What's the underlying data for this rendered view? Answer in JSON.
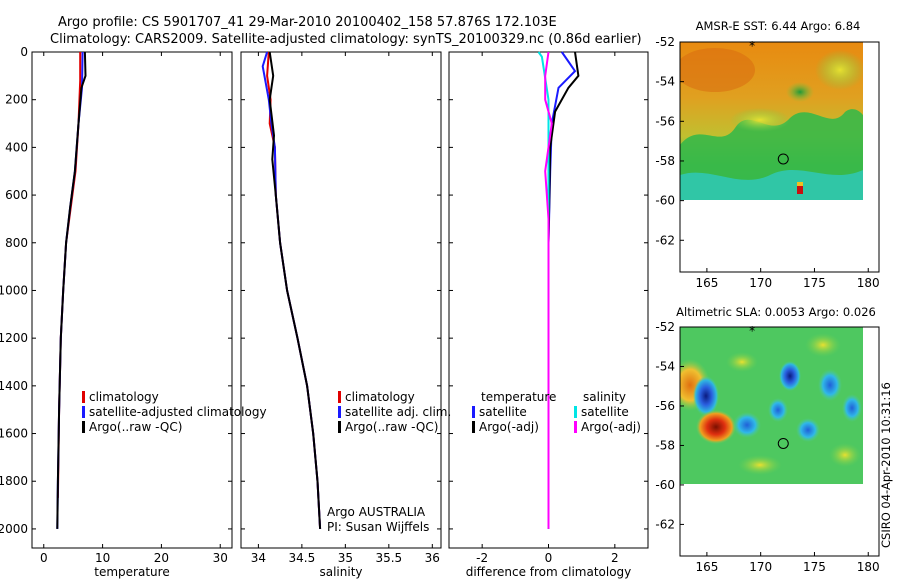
{
  "header": {
    "line1": "Argo profile: CS 5901707_41 29-Mar-2010 20100402_158 57.876S 172.103E",
    "line2": "Climatology: CARS2009. Satellite-adjusted climatology: synTS_20100329.nc (0.86d earlier)"
  },
  "side_label": "CSIRO 04-Apr-2010 10:31:16",
  "colors": {
    "red": "#e00000",
    "blue": "#1a1aff",
    "black": "#000000",
    "cyan": "#00e5e5",
    "magenta": "#ff00ff"
  },
  "chart_data": [
    {
      "id": "temperature",
      "type": "line",
      "xlabel": "temperature",
      "xlim": [
        -2,
        32
      ],
      "ylim": [
        0,
        2080
      ],
      "xticks": [
        0,
        10,
        20,
        30
      ],
      "yticks": [
        0,
        200,
        400,
        600,
        800,
        1000,
        1200,
        1400,
        1600,
        1800,
        2000
      ],
      "legend": [
        "climatology",
        "satellite-adjusted climatology",
        "Argo(..raw -QC)"
      ],
      "series": [
        {
          "name": "climatology",
          "color": "red",
          "points": [
            [
              6.2,
              0
            ],
            [
              6.2,
              120
            ],
            [
              5.9,
              300
            ],
            [
              5.4,
              500
            ],
            [
              4.6,
              650
            ],
            [
              3.8,
              800
            ],
            [
              3.3,
              1000
            ],
            [
              2.9,
              1200
            ],
            [
              2.6,
              1500
            ],
            [
              2.4,
              1870
            ]
          ]
        },
        {
          "name": "satellite-adjusted climatology",
          "color": "blue",
          "points": [
            [
              6.6,
              0
            ],
            [
              6.5,
              150
            ],
            [
              5.9,
              300
            ],
            [
              5.3,
              500
            ],
            [
              4.5,
              650
            ],
            [
              3.8,
              800
            ],
            [
              3.3,
              1000
            ],
            [
              2.9,
              1200
            ],
            [
              2.6,
              1500
            ],
            [
              2.4,
              1800
            ],
            [
              2.3,
              2000
            ]
          ]
        },
        {
          "name": "Argo(..raw -QC)",
          "color": "black",
          "points": [
            [
              7.0,
              0
            ],
            [
              7.1,
              100
            ],
            [
              6.4,
              150
            ],
            [
              5.9,
              300
            ],
            [
              5.3,
              500
            ],
            [
              4.5,
              650
            ],
            [
              3.8,
              800
            ],
            [
              3.3,
              1000
            ],
            [
              2.9,
              1200
            ],
            [
              2.6,
              1500
            ],
            [
              2.4,
              1800
            ],
            [
              2.3,
              2000
            ]
          ]
        }
      ]
    },
    {
      "id": "salinity",
      "type": "line",
      "xlabel": "salinity",
      "xlim": [
        33.8,
        36.1
      ],
      "ylim": [
        0,
        2080
      ],
      "xticks": [
        34,
        34.5,
        35,
        35.5,
        36
      ],
      "legend": [
        "climatology",
        "satellite adj. clim.",
        "Argo(..raw -QC)"
      ],
      "annotation": [
        "Argo AUSTRALIA",
        "PI: Susan Wijffels"
      ],
      "series": [
        {
          "name": "climatology",
          "color": "red",
          "points": [
            [
              34.12,
              0
            ],
            [
              34.1,
              100
            ],
            [
              34.14,
              200
            ],
            [
              34.13,
              300
            ],
            [
              34.19,
              400
            ],
            [
              34.2,
              600
            ],
            [
              34.25,
              800
            ],
            [
              34.33,
              1000
            ],
            [
              34.45,
              1200
            ],
            [
              34.56,
              1400
            ],
            [
              34.63,
              1600
            ],
            [
              34.68,
              1800
            ],
            [
              34.71,
              2000
            ]
          ]
        },
        {
          "name": "satellite adj. clim.",
          "color": "blue",
          "points": [
            [
              34.1,
              0
            ],
            [
              34.05,
              60
            ],
            [
              34.12,
              200
            ],
            [
              34.15,
              300
            ],
            [
              34.19,
              400
            ],
            [
              34.2,
              600
            ],
            [
              34.25,
              800
            ],
            [
              34.33,
              1000
            ],
            [
              34.45,
              1200
            ],
            [
              34.56,
              1400
            ],
            [
              34.63,
              1600
            ],
            [
              34.68,
              1800
            ],
            [
              34.71,
              2000
            ]
          ]
        },
        {
          "name": "Argo(..raw -QC)",
          "color": "black",
          "points": [
            [
              34.13,
              0
            ],
            [
              34.17,
              100
            ],
            [
              34.13,
              200
            ],
            [
              34.18,
              350
            ],
            [
              34.16,
              450
            ],
            [
              34.2,
              600
            ],
            [
              34.25,
              800
            ],
            [
              34.33,
              1000
            ],
            [
              34.45,
              1200
            ],
            [
              34.56,
              1400
            ],
            [
              34.63,
              1600
            ],
            [
              34.68,
              1800
            ],
            [
              34.71,
              2000
            ]
          ]
        }
      ]
    },
    {
      "id": "difference",
      "type": "line",
      "xlabel": "difference from climatology",
      "xlim": [
        -3,
        3
      ],
      "ylim": [
        0,
        2080
      ],
      "xticks": [
        -2,
        0,
        2
      ],
      "legend_temp_title": "temperature",
      "legend_sal_title": "salinity",
      "legend_temp": [
        "satellite",
        "Argo(-adj)"
      ],
      "legend_sal": [
        "satellite",
        "Argo(-adj)"
      ],
      "series": [
        {
          "name": "temperature satellite",
          "color": "blue",
          "points": [
            [
              0.4,
              0
            ],
            [
              0.6,
              40
            ],
            [
              0.8,
              80
            ],
            [
              0.3,
              150
            ],
            [
              0.1,
              300
            ],
            [
              0.05,
              500
            ],
            [
              0.0,
              800
            ],
            [
              0.0,
              2000
            ]
          ]
        },
        {
          "name": "temperature Argo(-adj)",
          "color": "black",
          "points": [
            [
              0.8,
              0
            ],
            [
              0.9,
              100
            ],
            [
              0.6,
              150
            ],
            [
              0.2,
              250
            ],
            [
              0.05,
              400
            ],
            [
              0.0,
              800
            ],
            [
              0.0,
              2000
            ]
          ]
        },
        {
          "name": "salinity satellite",
          "color": "cyan",
          "points": [
            [
              -0.3,
              0
            ],
            [
              -0.2,
              20
            ],
            [
              0,
              200
            ],
            [
              0,
              2000
            ]
          ]
        },
        {
          "name": "salinity Argo(-adj)",
          "color": "magenta",
          "points": [
            [
              0.0,
              0
            ],
            [
              -0.1,
              100
            ],
            [
              -0.1,
              200
            ],
            [
              0.1,
              300
            ],
            [
              -0.1,
              500
            ],
            [
              0.0,
              700
            ],
            [
              0.0,
              2000
            ]
          ]
        }
      ]
    },
    {
      "id": "sst_map",
      "type": "heatmap",
      "title": "AMSR-E SST: 6.44 Argo: 6.84",
      "xlim": [
        162.5,
        181
      ],
      "ylim": [
        -63.6,
        -52
      ],
      "xticks": [
        165,
        170,
        175,
        180
      ],
      "yticks": [
        -52,
        -54,
        -56,
        -58,
        -60,
        -62
      ],
      "data_bottom": -60,
      "marker_float": [
        172.1,
        -57.9
      ],
      "marker_star": [
        169.2,
        -52.1
      ]
    },
    {
      "id": "sla_map",
      "type": "heatmap",
      "title": "Altimetric SLA: 0.0053 Argo: 0.026",
      "xlim": [
        162.5,
        181
      ],
      "ylim": [
        -63.6,
        -52
      ],
      "xticks": [
        165,
        170,
        175,
        180
      ],
      "yticks": [
        -52,
        -54,
        -56,
        -58,
        -60,
        -62
      ],
      "data_bottom": -60,
      "marker_float": [
        172.1,
        -57.9
      ],
      "marker_star": [
        169.2,
        -52.1
      ]
    }
  ]
}
